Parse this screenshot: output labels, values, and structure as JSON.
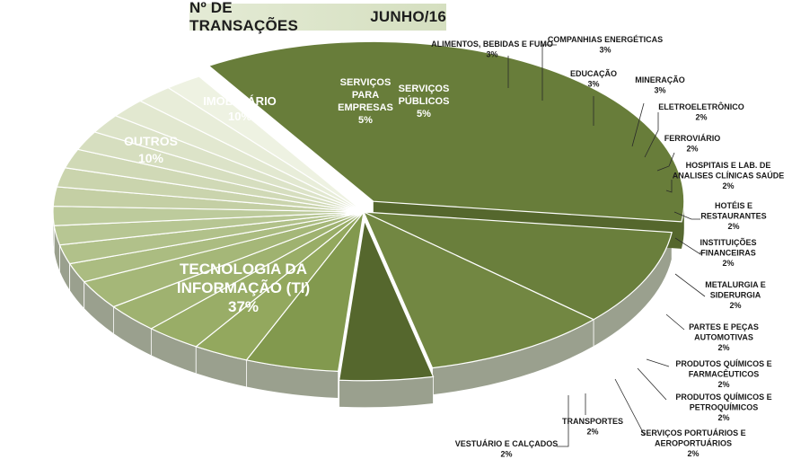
{
  "chart_data": {
    "type": "pie",
    "title_left": "Nº DE TRANSAÇÕES",
    "title_right": "JUNHO/16",
    "slices": [
      {
        "key": "ti",
        "label_lines": [
          "TECNOLOGIA DA",
          "INFORMAÇÃO (TI)"
        ],
        "value_label": "37%",
        "value": 37
      },
      {
        "key": "outros",
        "label_lines": [
          "OUTROS"
        ],
        "value_label": "10%",
        "value": 10
      },
      {
        "key": "imobiliario",
        "label_lines": [
          "IMOBILIÁRIO"
        ],
        "value_label": "10%",
        "value": 10
      },
      {
        "key": "servicos-empresas",
        "label_lines": [
          "SERVIÇOS",
          "PARA",
          "EMPRESAS"
        ],
        "value_label": "5%",
        "value": 5
      },
      {
        "key": "servicos-publicos",
        "label_lines": [
          "SERVIÇOS",
          "PÚBLICOS"
        ],
        "value_label": "5%",
        "value": 5
      },
      {
        "key": "alimentos",
        "label_lines": [
          "ALIMENTOS, BEBIDAS E FUMO"
        ],
        "value_label": "3%",
        "value": 3
      },
      {
        "key": "companhias-energeticas",
        "label_lines": [
          "COMPANHIAS ENERGÉTICAS"
        ],
        "value_label": "3%",
        "value": 3
      },
      {
        "key": "educacao",
        "label_lines": [
          "EDUCAÇÃO"
        ],
        "value_label": "3%",
        "value": 3
      },
      {
        "key": "mineracao",
        "label_lines": [
          "MINERAÇÃO"
        ],
        "value_label": "3%",
        "value": 3
      },
      {
        "key": "eletroeletronico",
        "label_lines": [
          "ELETROELETRÔNICO"
        ],
        "value_label": "2%",
        "value": 2
      },
      {
        "key": "ferroviario",
        "label_lines": [
          "FERROVIÁRIO"
        ],
        "value_label": "2%",
        "value": 2
      },
      {
        "key": "hospitais",
        "label_lines": [
          "HOSPITAIS E LAB. DE",
          "ANALISES CLÍNICAS SAÚDE"
        ],
        "value_label": "2%",
        "value": 2
      },
      {
        "key": "hoteis",
        "label_lines": [
          "HOTÉIS E",
          "RESTAURANTES"
        ],
        "value_label": "2%",
        "value": 2
      },
      {
        "key": "instituicoes-financeiras",
        "label_lines": [
          "INSTITUIÇÕES",
          "FINANCEIRAS"
        ],
        "value_label": "2%",
        "value": 2
      },
      {
        "key": "metalurgia",
        "label_lines": [
          "METALURGIA E",
          "SIDERURGIA"
        ],
        "value_label": "2%",
        "value": 2
      },
      {
        "key": "partes-pecas",
        "label_lines": [
          "PARTES E PEÇAS",
          "AUTOMOTIVAS"
        ],
        "value_label": "2%",
        "value": 2
      },
      {
        "key": "quimicos-farmaceuticos",
        "label_lines": [
          "PRODUTOS QUÍMICOS E",
          "FARMACÊUTICOS"
        ],
        "value_label": "2%",
        "value": 2
      },
      {
        "key": "quimicos-petroquimicos",
        "label_lines": [
          "PRODUTOS QUÍMICOS E",
          "PETROQUÍMICOS"
        ],
        "value_label": "2%",
        "value": 2
      },
      {
        "key": "servicos-portuarios",
        "label_lines": [
          "SERVIÇOS PORTUÁRIOS E",
          "AEROPORTUÁRIOS"
        ],
        "value_label": "2%",
        "value": 2
      },
      {
        "key": "transportes",
        "label_lines": [
          "TRANSPORTES"
        ],
        "value_label": "2%",
        "value": 2
      },
      {
        "key": "vestuario",
        "label_lines": [
          "VESTUÁRIO E CALÇADOS"
        ],
        "value_label": "2%",
        "value": 2
      }
    ]
  }
}
